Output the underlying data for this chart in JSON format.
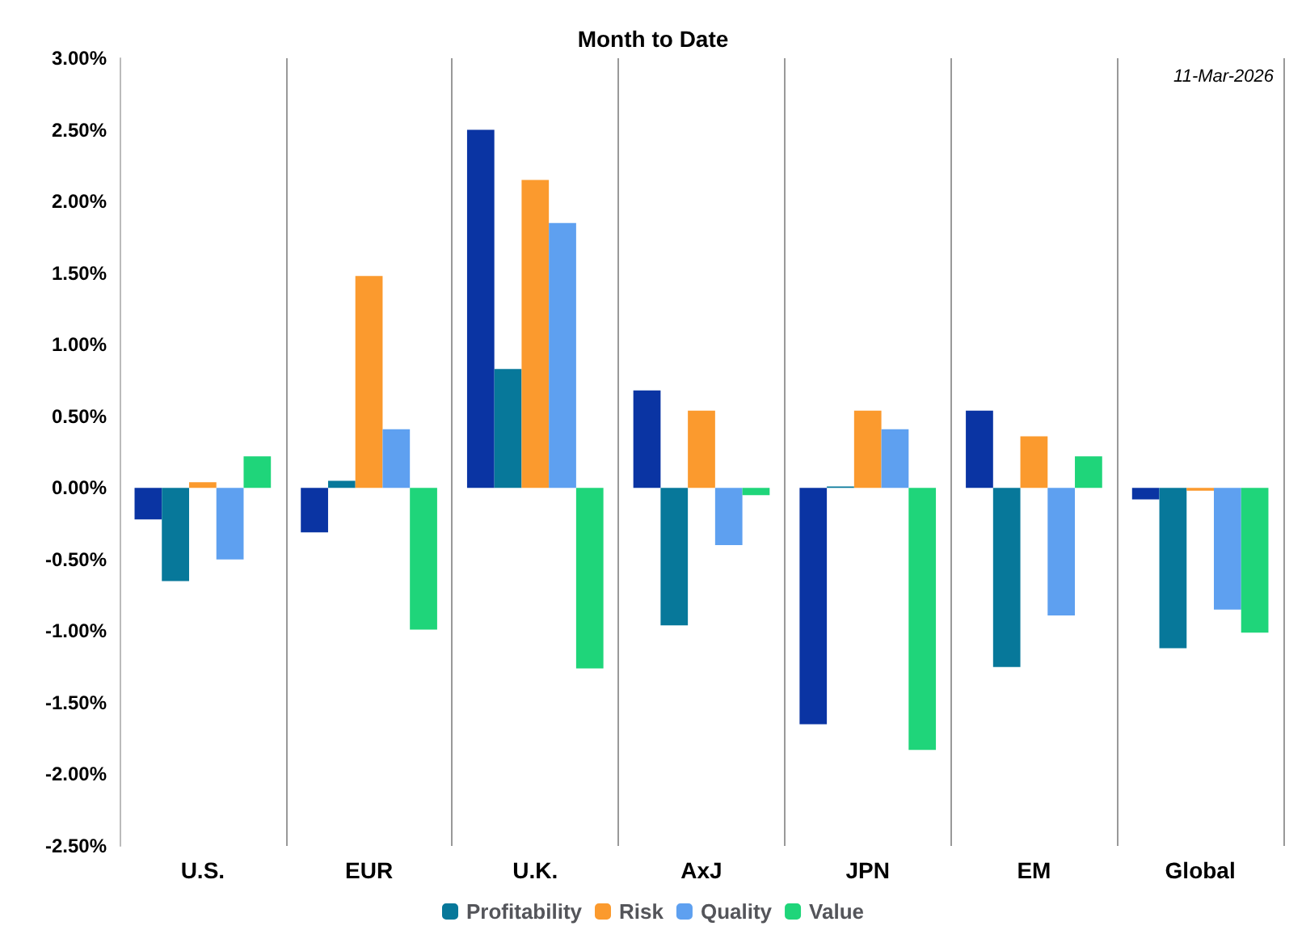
{
  "chart_data": {
    "type": "bar",
    "title": "Month to Date",
    "annotations": [
      "11-Mar-2026"
    ],
    "categories": [
      "U.S.",
      "EUR",
      "U.K.",
      "AxJ",
      "JPN",
      "EM",
      "Global"
    ],
    "series": [
      {
        "color": "#0a34a3",
        "values": [
          -0.22,
          -0.31,
          2.5,
          0.68,
          -1.65,
          0.54,
          -0.08
        ]
      },
      {
        "name": "Profitability",
        "color": "#07789a",
        "values": [
          -0.65,
          0.05,
          0.83,
          -0.96,
          0.01,
          -1.25,
          -1.12
        ]
      },
      {
        "name": "Risk",
        "color": "#fb9a2e",
        "values": [
          0.04,
          1.48,
          2.15,
          0.54,
          0.54,
          0.36,
          -0.02
        ]
      },
      {
        "name": "Quality",
        "color": "#5ea0f0",
        "values": [
          -0.5,
          0.41,
          1.85,
          -0.4,
          0.41,
          -0.89,
          -0.85
        ]
      },
      {
        "name": "Value",
        "color": "#1fd57a",
        "values": [
          0.22,
          -0.99,
          -1.26,
          -0.05,
          -1.83,
          0.22,
          -1.01
        ]
      }
    ],
    "ylim": [
      -2.5,
      3
    ],
    "yticks": [
      {
        "value": -2.5,
        "label": "-2.50%"
      },
      {
        "value": -2,
        "label": "-2.00%"
      },
      {
        "value": -1.5,
        "label": "-1.50%"
      },
      {
        "value": -1,
        "label": "-1.00%"
      },
      {
        "value": -0.5,
        "label": "-0.50%"
      },
      {
        "value": 0,
        "label": "0.00%"
      },
      {
        "value": 0.5,
        "label": "0.50%"
      },
      {
        "value": 1,
        "label": "1.00%"
      },
      {
        "value": 1.5,
        "label": "1.50%"
      },
      {
        "value": 2,
        "label": "2.00%"
      },
      {
        "value": 2.5,
        "label": "2.50%"
      },
      {
        "value": 3,
        "label": "3.00%"
      }
    ],
    "grid": "x",
    "legend": "bottom"
  }
}
